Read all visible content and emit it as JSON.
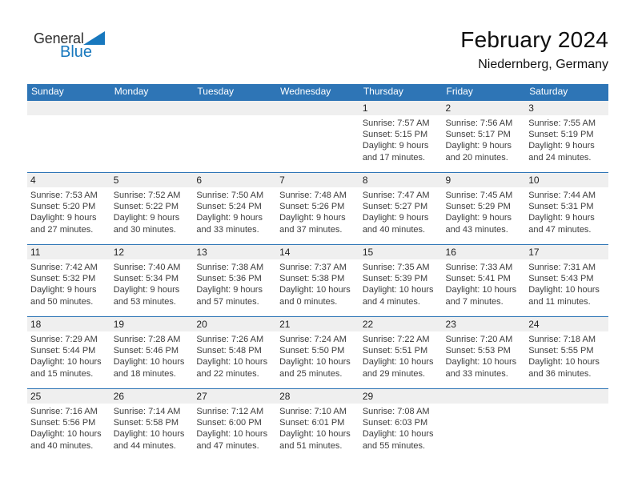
{
  "logo": {
    "general": "General",
    "blue": "Blue"
  },
  "header": {
    "title": "February 2024",
    "location": "Niedernberg, Germany"
  },
  "colors": {
    "header_blue": "#2e75b6",
    "row_line_blue": "#2e75b6",
    "date_strip_gray": "#efefef",
    "logo_blue": "#1878be",
    "cell_text": "#3d3d3d"
  },
  "calendar": {
    "day_headers": [
      "Sunday",
      "Monday",
      "Tuesday",
      "Wednesday",
      "Thursday",
      "Friday",
      "Saturday"
    ],
    "weeks": [
      [
        {
          "date": "",
          "sunrise": "",
          "sunset": "",
          "daylight": ""
        },
        {
          "date": "",
          "sunrise": "",
          "sunset": "",
          "daylight": ""
        },
        {
          "date": "",
          "sunrise": "",
          "sunset": "",
          "daylight": ""
        },
        {
          "date": "",
          "sunrise": "",
          "sunset": "",
          "daylight": ""
        },
        {
          "date": "1",
          "sunrise": "Sunrise: 7:57 AM",
          "sunset": "Sunset: 5:15 PM",
          "daylight": "Daylight: 9 hours and 17 minutes."
        },
        {
          "date": "2",
          "sunrise": "Sunrise: 7:56 AM",
          "sunset": "Sunset: 5:17 PM",
          "daylight": "Daylight: 9 hours and 20 minutes."
        },
        {
          "date": "3",
          "sunrise": "Sunrise: 7:55 AM",
          "sunset": "Sunset: 5:19 PM",
          "daylight": "Daylight: 9 hours and 24 minutes."
        }
      ],
      [
        {
          "date": "4",
          "sunrise": "Sunrise: 7:53 AM",
          "sunset": "Sunset: 5:20 PM",
          "daylight": "Daylight: 9 hours and 27 minutes."
        },
        {
          "date": "5",
          "sunrise": "Sunrise: 7:52 AM",
          "sunset": "Sunset: 5:22 PM",
          "daylight": "Daylight: 9 hours and 30 minutes."
        },
        {
          "date": "6",
          "sunrise": "Sunrise: 7:50 AM",
          "sunset": "Sunset: 5:24 PM",
          "daylight": "Daylight: 9 hours and 33 minutes."
        },
        {
          "date": "7",
          "sunrise": "Sunrise: 7:48 AM",
          "sunset": "Sunset: 5:26 PM",
          "daylight": "Daylight: 9 hours and 37 minutes."
        },
        {
          "date": "8",
          "sunrise": "Sunrise: 7:47 AM",
          "sunset": "Sunset: 5:27 PM",
          "daylight": "Daylight: 9 hours and 40 minutes."
        },
        {
          "date": "9",
          "sunrise": "Sunrise: 7:45 AM",
          "sunset": "Sunset: 5:29 PM",
          "daylight": "Daylight: 9 hours and 43 minutes."
        },
        {
          "date": "10",
          "sunrise": "Sunrise: 7:44 AM",
          "sunset": "Sunset: 5:31 PM",
          "daylight": "Daylight: 9 hours and 47 minutes."
        }
      ],
      [
        {
          "date": "11",
          "sunrise": "Sunrise: 7:42 AM",
          "sunset": "Sunset: 5:32 PM",
          "daylight": "Daylight: 9 hours and 50 minutes."
        },
        {
          "date": "12",
          "sunrise": "Sunrise: 7:40 AM",
          "sunset": "Sunset: 5:34 PM",
          "daylight": "Daylight: 9 hours and 53 minutes."
        },
        {
          "date": "13",
          "sunrise": "Sunrise: 7:38 AM",
          "sunset": "Sunset: 5:36 PM",
          "daylight": "Daylight: 9 hours and 57 minutes."
        },
        {
          "date": "14",
          "sunrise": "Sunrise: 7:37 AM",
          "sunset": "Sunset: 5:38 PM",
          "daylight": "Daylight: 10 hours and 0 minutes."
        },
        {
          "date": "15",
          "sunrise": "Sunrise: 7:35 AM",
          "sunset": "Sunset: 5:39 PM",
          "daylight": "Daylight: 10 hours and 4 minutes."
        },
        {
          "date": "16",
          "sunrise": "Sunrise: 7:33 AM",
          "sunset": "Sunset: 5:41 PM",
          "daylight": "Daylight: 10 hours and 7 minutes."
        },
        {
          "date": "17",
          "sunrise": "Sunrise: 7:31 AM",
          "sunset": "Sunset: 5:43 PM",
          "daylight": "Daylight: 10 hours and 11 minutes."
        }
      ],
      [
        {
          "date": "18",
          "sunrise": "Sunrise: 7:29 AM",
          "sunset": "Sunset: 5:44 PM",
          "daylight": "Daylight: 10 hours and 15 minutes."
        },
        {
          "date": "19",
          "sunrise": "Sunrise: 7:28 AM",
          "sunset": "Sunset: 5:46 PM",
          "daylight": "Daylight: 10 hours and 18 minutes."
        },
        {
          "date": "20",
          "sunrise": "Sunrise: 7:26 AM",
          "sunset": "Sunset: 5:48 PM",
          "daylight": "Daylight: 10 hours and 22 minutes."
        },
        {
          "date": "21",
          "sunrise": "Sunrise: 7:24 AM",
          "sunset": "Sunset: 5:50 PM",
          "daylight": "Daylight: 10 hours and 25 minutes."
        },
        {
          "date": "22",
          "sunrise": "Sunrise: 7:22 AM",
          "sunset": "Sunset: 5:51 PM",
          "daylight": "Daylight: 10 hours and 29 minutes."
        },
        {
          "date": "23",
          "sunrise": "Sunrise: 7:20 AM",
          "sunset": "Sunset: 5:53 PM",
          "daylight": "Daylight: 10 hours and 33 minutes."
        },
        {
          "date": "24",
          "sunrise": "Sunrise: 7:18 AM",
          "sunset": "Sunset: 5:55 PM",
          "daylight": "Daylight: 10 hours and 36 minutes."
        }
      ],
      [
        {
          "date": "25",
          "sunrise": "Sunrise: 7:16 AM",
          "sunset": "Sunset: 5:56 PM",
          "daylight": "Daylight: 10 hours and 40 minutes."
        },
        {
          "date": "26",
          "sunrise": "Sunrise: 7:14 AM",
          "sunset": "Sunset: 5:58 PM",
          "daylight": "Daylight: 10 hours and 44 minutes."
        },
        {
          "date": "27",
          "sunrise": "Sunrise: 7:12 AM",
          "sunset": "Sunset: 6:00 PM",
          "daylight": "Daylight: 10 hours and 47 minutes."
        },
        {
          "date": "28",
          "sunrise": "Sunrise: 7:10 AM",
          "sunset": "Sunset: 6:01 PM",
          "daylight": "Daylight: 10 hours and 51 minutes."
        },
        {
          "date": "29",
          "sunrise": "Sunrise: 7:08 AM",
          "sunset": "Sunset: 6:03 PM",
          "daylight": "Daylight: 10 hours and 55 minutes."
        },
        {
          "date": "",
          "sunrise": "",
          "sunset": "",
          "daylight": ""
        },
        {
          "date": "",
          "sunrise": "",
          "sunset": "",
          "daylight": ""
        }
      ]
    ]
  }
}
